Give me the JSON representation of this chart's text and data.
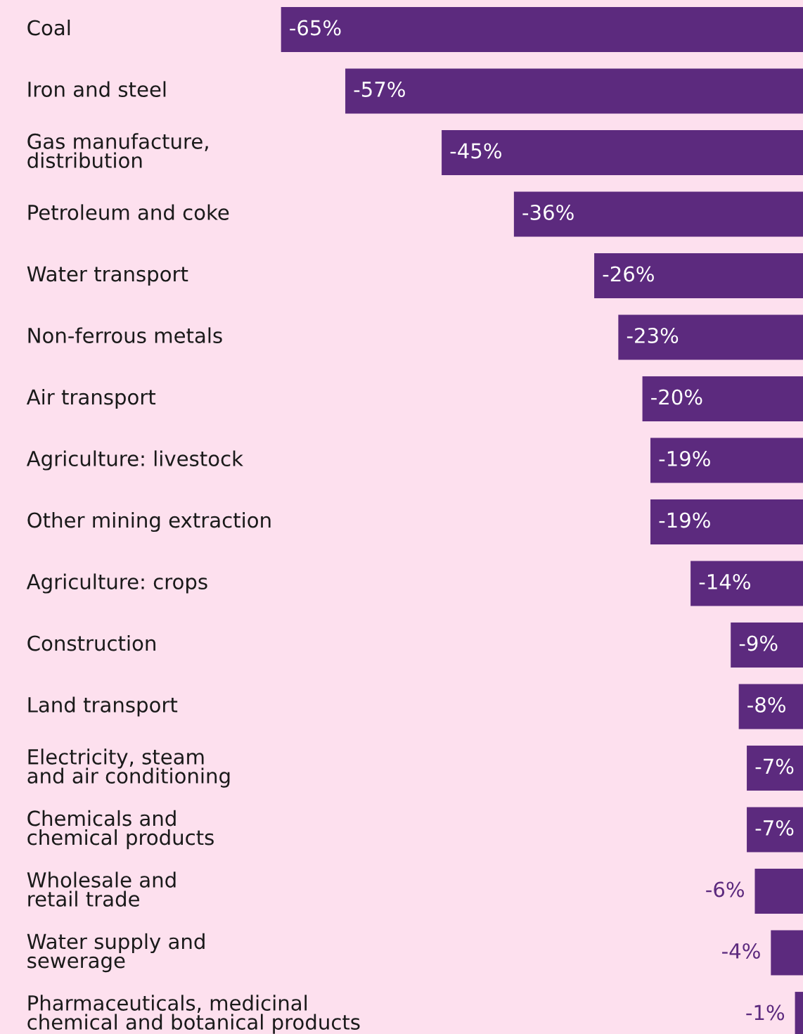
{
  "chart_data": {
    "type": "bar",
    "orientation": "horizontal",
    "categories": [
      "Coal",
      "Iron and steel",
      "Gas manufacture,\ndistribution",
      "Petroleum and coke",
      "Water transport",
      "Non-ferrous metals",
      "Air transport",
      "Agriculture: livestock",
      "Other mining extraction",
      "Agriculture: crops",
      "Construction",
      "Land transport",
      "Electricity, steam\nand air conditioning",
      "Chemicals and\nchemical products",
      "Wholesale and\nretail trade",
      "Water supply and\nsewerage",
      "Pharmaceuticals, medicinal\nchemical and botanical products"
    ],
    "values": [
      -65,
      -57,
      -45,
      -36,
      -26,
      -23,
      -20,
      -19,
      -19,
      -14,
      -9,
      -8,
      -7,
      -7,
      -6,
      -4,
      -1
    ],
    "value_labels": [
      "-65%",
      "-57%",
      "-45%",
      "-36%",
      "-26%",
      "-23%",
      "-20%",
      "-19%",
      "-19%",
      "-14%",
      "-9%",
      "-8%",
      "-7%",
      "-7%",
      "-6%",
      "-4%",
      "-1%"
    ],
    "color": "#5c2a7e",
    "xlim": [
      -100,
      0
    ]
  }
}
